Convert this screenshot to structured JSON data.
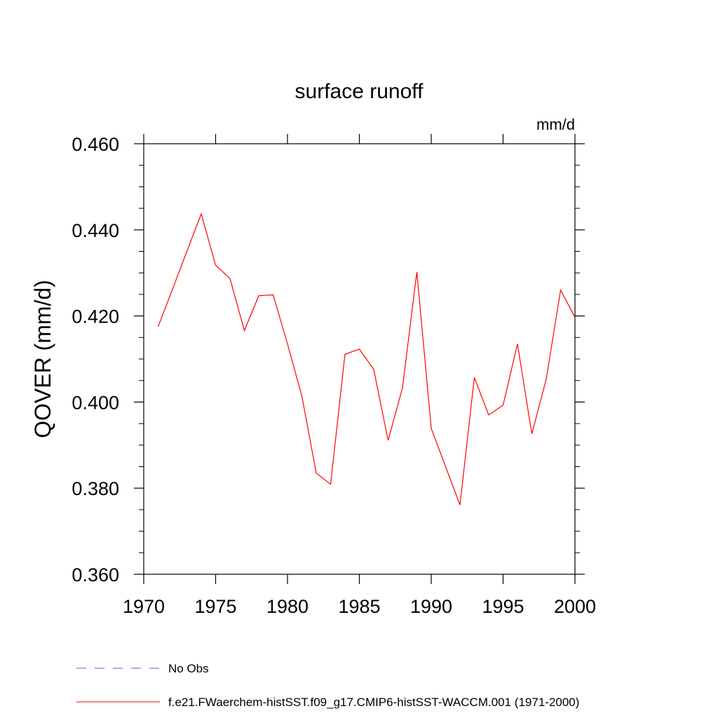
{
  "chart_data": {
    "type": "line",
    "title": "surface runoff",
    "units_label": "mm/d",
    "ylabel": "QOVER  (mm/d)",
    "xlabel": "",
    "xlim": [
      1970,
      2000
    ],
    "ylim": [
      0.36,
      0.46
    ],
    "x_ticks": [
      1970,
      1975,
      1980,
      1985,
      1990,
      1995,
      2000
    ],
    "x_tick_labels": [
      "1970",
      "1975",
      "1980",
      "1985",
      "1990",
      "1995",
      "2000"
    ],
    "y_ticks": [
      0.36,
      0.38,
      0.4,
      0.42,
      0.44,
      0.46
    ],
    "y_tick_labels": [
      "0.360",
      "0.380",
      "0.400",
      "0.420",
      "0.440",
      "0.460"
    ],
    "grid": false,
    "legend_position": "bottom-left",
    "series": [
      {
        "name": "No Obs",
        "color": "#6a5acd",
        "dashed": true,
        "x": [],
        "y": []
      },
      {
        "name": "f.e21.FWaerchem-histSST.f09_g17.CMIP6-histSST-WACCM.001 (1971-2000)",
        "color": "#ff0000",
        "dashed": false,
        "x": [
          1971,
          1972,
          1973,
          1974,
          1975,
          1976,
          1977,
          1978,
          1979,
          1980,
          1981,
          1982,
          1983,
          1984,
          1985,
          1986,
          1987,
          1988,
          1989,
          1990,
          1991,
          1992,
          1993,
          1994,
          1995,
          1996,
          1997,
          1998,
          1999,
          2000
        ],
        "y": [
          0.4175,
          0.4262,
          0.435,
          0.4437,
          0.4318,
          0.4287,
          0.4166,
          0.4247,
          0.4249,
          0.4135,
          0.4014,
          0.3835,
          0.3809,
          0.4111,
          0.4123,
          0.4076,
          0.3911,
          0.4033,
          0.4302,
          0.3939,
          0.385,
          0.3761,
          0.4057,
          0.397,
          0.3993,
          0.4135,
          0.3926,
          0.4053,
          0.426,
          0.4197
        ]
      }
    ]
  }
}
